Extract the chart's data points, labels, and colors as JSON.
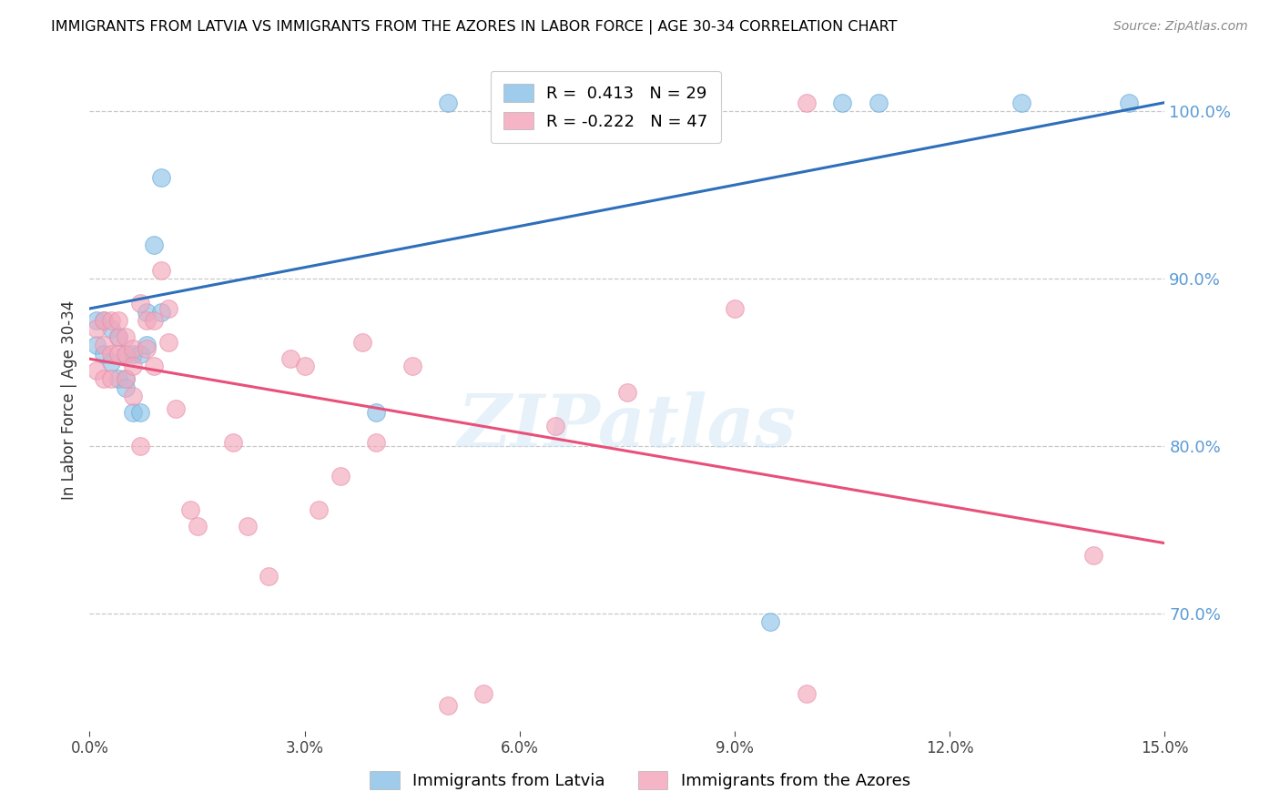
{
  "title": "IMMIGRANTS FROM LATVIA VS IMMIGRANTS FROM THE AZORES IN LABOR FORCE | AGE 30-34 CORRELATION CHART",
  "source": "Source: ZipAtlas.com",
  "ylabel": "In Labor Force | Age 30-34",
  "xlim": [
    0.0,
    0.15
  ],
  "ylim": [
    0.63,
    1.025
  ],
  "yticks": [
    0.7,
    0.8,
    0.9,
    1.0
  ],
  "xticks": [
    0.0,
    0.03,
    0.06,
    0.09,
    0.12,
    0.15
  ],
  "latvia_color": "#8ec4e8",
  "azores_color": "#f4a8bc",
  "latvia_line_color": "#2e6fba",
  "azores_line_color": "#e8507a",
  "legend_label_latvia": "Immigrants from Latvia",
  "legend_label_azores": "Immigrants from the Azores",
  "R_latvia": 0.413,
  "N_latvia": 29,
  "R_azores": -0.222,
  "N_azores": 47,
  "watermark": "ZIPatlas",
  "latvia_x": [
    0.001,
    0.001,
    0.002,
    0.002,
    0.003,
    0.003,
    0.004,
    0.004,
    0.005,
    0.005,
    0.005,
    0.006,
    0.006,
    0.007,
    0.007,
    0.008,
    0.008,
    0.009,
    0.01,
    0.01,
    0.04,
    0.05,
    0.065,
    0.085,
    0.095,
    0.105,
    0.11,
    0.13,
    0.145
  ],
  "latvia_y": [
    0.86,
    0.875,
    0.875,
    0.855,
    0.87,
    0.85,
    0.865,
    0.84,
    0.855,
    0.84,
    0.835,
    0.855,
    0.82,
    0.82,
    0.855,
    0.88,
    0.86,
    0.92,
    0.88,
    0.96,
    0.82,
    1.005,
    1.005,
    1.005,
    0.695,
    1.005,
    1.005,
    1.005,
    1.005
  ],
  "azores_x": [
    0.001,
    0.001,
    0.002,
    0.002,
    0.002,
    0.003,
    0.003,
    0.003,
    0.004,
    0.004,
    0.004,
    0.005,
    0.005,
    0.005,
    0.006,
    0.006,
    0.006,
    0.007,
    0.007,
    0.008,
    0.008,
    0.009,
    0.009,
    0.01,
    0.011,
    0.011,
    0.012,
    0.014,
    0.015,
    0.02,
    0.022,
    0.025,
    0.028,
    0.03,
    0.032,
    0.035,
    0.038,
    0.04,
    0.045,
    0.05,
    0.055,
    0.065,
    0.075,
    0.09,
    0.1,
    0.1,
    0.14
  ],
  "azores_y": [
    0.845,
    0.87,
    0.875,
    0.86,
    0.84,
    0.855,
    0.84,
    0.875,
    0.865,
    0.855,
    0.875,
    0.855,
    0.84,
    0.865,
    0.858,
    0.848,
    0.83,
    0.8,
    0.885,
    0.875,
    0.858,
    0.848,
    0.875,
    0.905,
    0.862,
    0.882,
    0.822,
    0.762,
    0.752,
    0.802,
    0.752,
    0.722,
    0.852,
    0.848,
    0.762,
    0.782,
    0.862,
    0.802,
    0.848,
    0.645,
    0.652,
    0.812,
    0.832,
    0.882,
    1.005,
    0.652,
    0.735
  ],
  "background_color": "#ffffff",
  "grid_color": "#c8c8c8",
  "latvia_trend": [
    0.882,
    1.005
  ],
  "azores_trend": [
    0.852,
    0.742
  ]
}
